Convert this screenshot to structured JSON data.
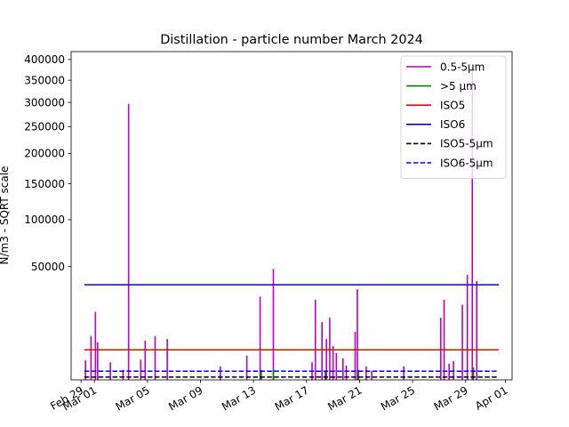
{
  "chart_data": {
    "type": "line",
    "title": "Distillation - particle number March 2024",
    "ylabel": "N/m3 - SQRT scale",
    "xlabel": "",
    "y_scale": "sqrt",
    "ylim": [
      0,
      420000
    ],
    "xlim": [
      "2024-02-28T06:00",
      "2024-04-01T12:00"
    ],
    "grid": false,
    "legend_position": "top-right",
    "x_ticks": [
      {
        "date": "2024-02-29",
        "label": "Feb 29"
      },
      {
        "date": "2024-03-01",
        "label": "Mar 01"
      },
      {
        "date": "2024-03-05",
        "label": "Mar 05"
      },
      {
        "date": "2024-03-09",
        "label": "Mar 09"
      },
      {
        "date": "2024-03-13",
        "label": "Mar 13"
      },
      {
        "date": "2024-03-17",
        "label": "Mar 17"
      },
      {
        "date": "2024-03-21",
        "label": "Mar 21"
      },
      {
        "date": "2024-03-25",
        "label": "Mar 25"
      },
      {
        "date": "2024-03-29",
        "label": "Mar 29"
      },
      {
        "date": "2024-04-01",
        "label": "Apr 01"
      }
    ],
    "y_ticks": [
      {
        "value": 50000,
        "label": "50000"
      },
      {
        "value": 100000,
        "label": "100000"
      },
      {
        "value": 150000,
        "label": "150000"
      },
      {
        "value": 200000,
        "label": "200000"
      },
      {
        "value": 250000,
        "label": "250000"
      },
      {
        "value": 300000,
        "label": "300000"
      },
      {
        "value": 350000,
        "label": "350000"
      },
      {
        "value": 400000,
        "label": "400000"
      }
    ],
    "series": [
      {
        "name": "0.5-5µm",
        "color": "#bf00bf",
        "style": "solid",
        "kind": "spikes",
        "points": [
          [
            "2024-02-29T08:00",
            1500
          ],
          [
            "2024-02-29T18:00",
            7500
          ],
          [
            "2024-03-01T02:00",
            18000
          ],
          [
            "2024-03-01T06:00",
            5500
          ],
          [
            "2024-03-02T05:00",
            1200
          ],
          [
            "2024-03-03T04:00",
            400
          ],
          [
            "2024-03-03T14:00",
            297000
          ],
          [
            "2024-03-04T12:00",
            1600
          ],
          [
            "2024-03-04T20:00",
            6000
          ],
          [
            "2024-03-05T14:00",
            7500
          ],
          [
            "2024-03-06T12:00",
            6500
          ],
          [
            "2024-03-10T12:00",
            700
          ],
          [
            "2024-03-12T12:00",
            2300
          ],
          [
            "2024-03-13T12:00",
            27000
          ],
          [
            "2024-03-14T12:00",
            48000
          ],
          [
            "2024-03-17T10:00",
            1200
          ],
          [
            "2024-03-17T16:00",
            25000
          ],
          [
            "2024-03-18T04:00",
            13000
          ],
          [
            "2024-03-18T12:00",
            6500
          ],
          [
            "2024-03-18T18:00",
            15000
          ],
          [
            "2024-03-19T00:00",
            4500
          ],
          [
            "2024-03-19T06:00",
            2800
          ],
          [
            "2024-03-19T18:00",
            1800
          ],
          [
            "2024-03-20T00:00",
            800
          ],
          [
            "2024-03-20T16:00",
            9000
          ],
          [
            "2024-03-20T20:00",
            32000
          ],
          [
            "2024-03-21T12:00",
            700
          ],
          [
            "2024-03-21T22:00",
            300
          ],
          [
            "2024-03-24T08:00",
            700
          ],
          [
            "2024-03-27T03:00",
            15000
          ],
          [
            "2024-03-27T09:00",
            25000
          ],
          [
            "2024-03-27T18:00",
            1000
          ],
          [
            "2024-03-28T02:00",
            1400
          ],
          [
            "2024-03-28T18:00",
            22000
          ],
          [
            "2024-03-29T03:00",
            43000
          ],
          [
            "2024-03-29T12:00",
            380000
          ],
          [
            "2024-03-29T20:00",
            38000
          ]
        ]
      },
      {
        "name": ">5 µm",
        "color": "#008000",
        "style": "solid",
        "kind": "spikes",
        "points": [
          [
            "2024-03-13T14:00",
            400
          ],
          [
            "2024-03-14T12:00",
            500
          ],
          [
            "2024-03-18T10:00",
            300
          ],
          [
            "2024-03-20T22:00",
            400
          ],
          [
            "2024-03-29T14:00",
            600
          ]
        ]
      },
      {
        "name": "ISO5",
        "color": "#ff0000",
        "style": "solid",
        "kind": "hline",
        "value": 3520,
        "x_range": [
          "2024-02-29T06:00",
          "2024-03-31T12:00"
        ]
      },
      {
        "name": "ISO6",
        "color": "#0000ff",
        "style": "solid",
        "kind": "hline",
        "value": 35200,
        "x_range": [
          "2024-02-29T06:00",
          "2024-03-31T12:00"
        ]
      },
      {
        "name": "ISO5-5µm",
        "color": "#000000",
        "style": "dashed",
        "kind": "hline",
        "value": 29,
        "x_range": [
          "2024-02-29T06:00",
          "2024-03-31T12:00"
        ]
      },
      {
        "name": "ISO6-5µm",
        "color": "#0000ff",
        "style": "dashed",
        "kind": "hline",
        "value": 293,
        "x_range": [
          "2024-02-29T06:00",
          "2024-03-31T12:00"
        ]
      }
    ]
  }
}
